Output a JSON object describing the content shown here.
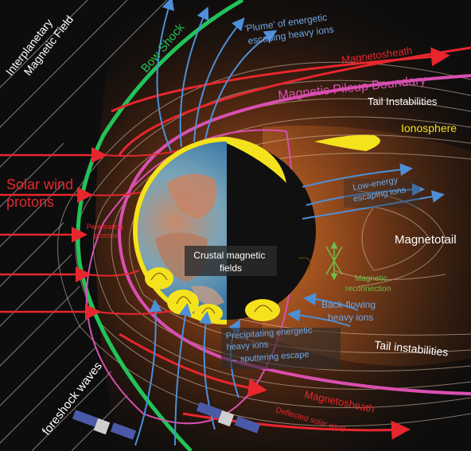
{
  "labels": {
    "interplanetary": [
      "Interplanetary",
      "Magnetic Field"
    ],
    "bow_shock": "Bow Shock",
    "plume": [
      "'Plume' of energetic",
      "escaping heavy ions"
    ],
    "magnetosheath_top": "Magnetosheath",
    "pileup": "Magnetic Pileup Boundary",
    "tail_instabilities_top": "Tail Instabilities",
    "ionosphere": "Ionosphere",
    "solar_wind": [
      "Solar wind",
      "protons"
    ],
    "low_energy": [
      "Low-energy",
      "escaping ions"
    ],
    "penetrating": [
      "Penetrating",
      "protons"
    ],
    "magnetotail": "Magnetotail",
    "crustal": [
      "Crustal magnetic",
      "fields"
    ],
    "reconnection": [
      "Magnetic",
      "reconnection"
    ],
    "backflowing": [
      "Back-flowing",
      "heavy ions"
    ],
    "precipitating": [
      "Precipitating energetic",
      "heavy ions",
      "→ sputtering escape"
    ],
    "tail_instabilities_bottom": "Tail instabilities",
    "foreshock": "foreshock waves",
    "magnetosheath_bottom": "Magnetosheath",
    "deflected": "Deflected solar wind"
  },
  "colors": {
    "background": "#0d0d0d",
    "bow_shock": "#21c35a",
    "pileup": "#d94fb0",
    "solar_wind": "#e8262e",
    "escaping_ions": "#4d8fd8",
    "ionosphere": "#f4e21c",
    "reconnection": "#6fbf4a",
    "glow": "#c8621e"
  }
}
